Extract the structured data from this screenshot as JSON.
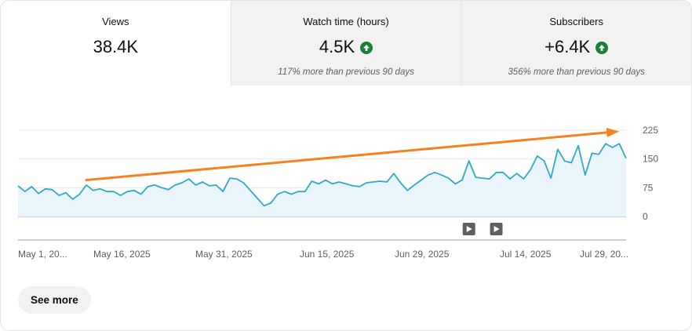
{
  "metrics": [
    {
      "label": "Views",
      "value": "38.4K",
      "up": false,
      "sub": ""
    },
    {
      "label": "Watch time (hours)",
      "value": "4.5K",
      "up": true,
      "sub": "117% more than previous 90 days"
    },
    {
      "label": "Subscribers",
      "value": "+6.4K",
      "up": true,
      "sub": "356% more than previous 90 days"
    }
  ],
  "see_more_label": "See more",
  "colors": {
    "line": "#30a9c8",
    "fill": "#eaf5fb",
    "arrow": "#f5821f",
    "up_badge": "#188038"
  },
  "icons": [
    "arrow-up-icon",
    "play-icon"
  ],
  "chart_data": {
    "type": "area",
    "title": "",
    "xlabel": "",
    "ylabel": "",
    "ylim": [
      0,
      225
    ],
    "y_ticks": [
      0,
      75,
      150,
      225
    ],
    "x_tick_labels": [
      "May 1, 20...",
      "May 16, 2025",
      "May 31, 2025",
      "Jun 15, 2025",
      "Jun 29, 2025",
      "Jul 14, 2025",
      "Jul 29, 20..."
    ],
    "grid": true,
    "values": [
      80,
      65,
      78,
      60,
      72,
      70,
      55,
      62,
      45,
      58,
      82,
      68,
      72,
      65,
      65,
      55,
      65,
      68,
      58,
      78,
      82,
      75,
      70,
      82,
      88,
      98,
      82,
      90,
      80,
      82,
      65,
      100,
      98,
      88,
      68,
      48,
      28,
      35,
      58,
      65,
      58,
      65,
      65,
      92,
      85,
      95,
      85,
      90,
      85,
      80,
      78,
      88,
      90,
      92,
      90,
      112,
      88,
      68,
      82,
      95,
      108,
      115,
      108,
      100,
      85,
      95,
      145,
      102,
      100,
      98,
      115,
      115,
      98,
      112,
      98,
      122,
      158,
      145,
      100,
      175,
      145,
      140,
      185,
      108,
      165,
      162,
      190,
      180,
      190,
      152
    ],
    "trend_arrow": {
      "from_index": 10,
      "from_value": 95,
      "to_index": 88,
      "to_value": 222
    },
    "annotation_markers": [
      {
        "index": 66,
        "icon": "play-icon"
      },
      {
        "index": 70,
        "icon": "play-icon"
      }
    ]
  }
}
